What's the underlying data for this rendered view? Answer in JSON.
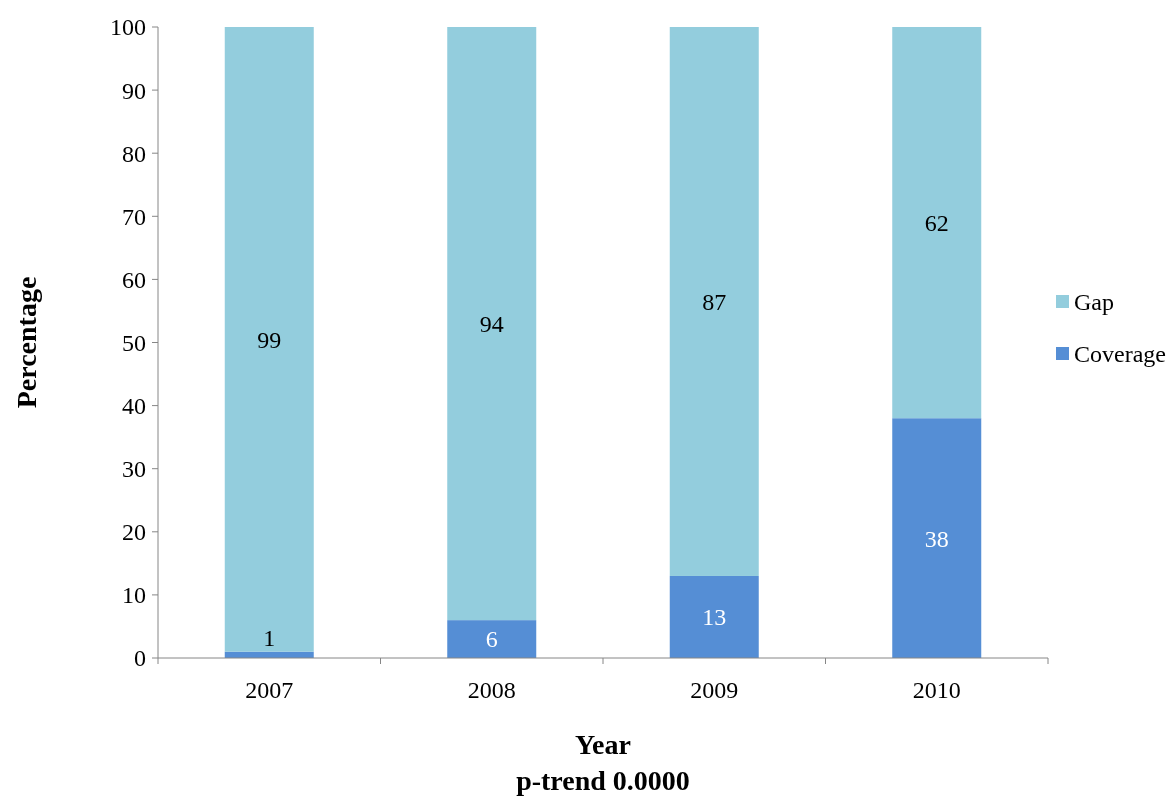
{
  "chart_data": {
    "type": "bar",
    "stacked": true,
    "categories": [
      "2007",
      "2008",
      "2009",
      "2010"
    ],
    "series": [
      {
        "name": "Coverage",
        "color": "#558ed5",
        "values": [
          1,
          6,
          13,
          38
        ]
      },
      {
        "name": "Gap",
        "color": "#93cddd",
        "values": [
          99,
          94,
          87,
          62
        ]
      }
    ],
    "ylim": [
      0,
      100
    ],
    "yticks": [
      0,
      10,
      20,
      30,
      40,
      50,
      60,
      70,
      80,
      90,
      100
    ],
    "xlabel": "Year",
    "ylabel": "Percentage",
    "annotations": [
      "p-trend 0.0000"
    ],
    "data_labels": true,
    "legend": "right",
    "grid": false
  }
}
